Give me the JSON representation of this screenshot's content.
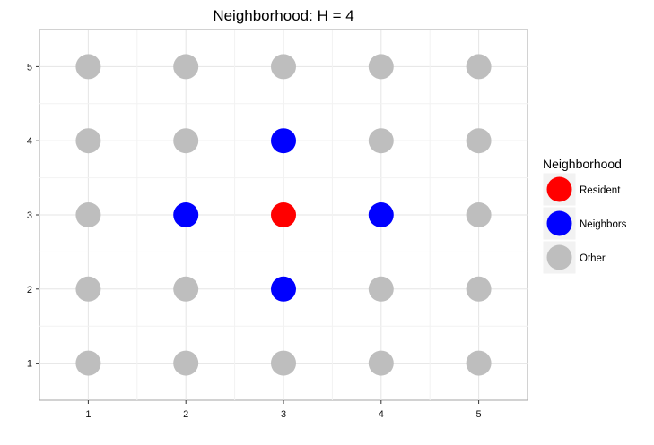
{
  "chart_data": {
    "type": "scatter",
    "title": "Neighborhood: H = 4",
    "xlabel": "",
    "ylabel": "",
    "xlim": [
      0.5,
      5.5
    ],
    "ylim": [
      0.5,
      5.5
    ],
    "x_ticks": [
      "1",
      "2",
      "3",
      "4",
      "5"
    ],
    "y_ticks": [
      "1",
      "2",
      "3",
      "4",
      "5"
    ],
    "grid": true,
    "legend": {
      "title": "Neighborhood",
      "placement": "right",
      "entries": [
        {
          "label": "Resident",
          "color": "#ff0000"
        },
        {
          "label": "Neighbors",
          "color": "#0000ff"
        },
        {
          "label": "Other",
          "color": "#bebebe"
        }
      ]
    },
    "series": [
      {
        "name": "Resident",
        "color": "#ff0000",
        "points": [
          [
            3,
            3
          ]
        ]
      },
      {
        "name": "Neighbors",
        "color": "#0000ff",
        "points": [
          [
            2,
            3
          ],
          [
            4,
            3
          ],
          [
            3,
            4
          ],
          [
            3,
            2
          ]
        ]
      },
      {
        "name": "Other",
        "color": "#bebebe",
        "points": [
          [
            1,
            1
          ],
          [
            2,
            1
          ],
          [
            3,
            1
          ],
          [
            4,
            1
          ],
          [
            5,
            1
          ],
          [
            1,
            2
          ],
          [
            2,
            2
          ],
          [
            4,
            2
          ],
          [
            5,
            2
          ],
          [
            1,
            3
          ],
          [
            5,
            3
          ],
          [
            1,
            4
          ],
          [
            2,
            4
          ],
          [
            4,
            4
          ],
          [
            5,
            4
          ],
          [
            1,
            5
          ],
          [
            2,
            5
          ],
          [
            3,
            5
          ],
          [
            4,
            5
          ],
          [
            5,
            5
          ]
        ]
      }
    ]
  }
}
